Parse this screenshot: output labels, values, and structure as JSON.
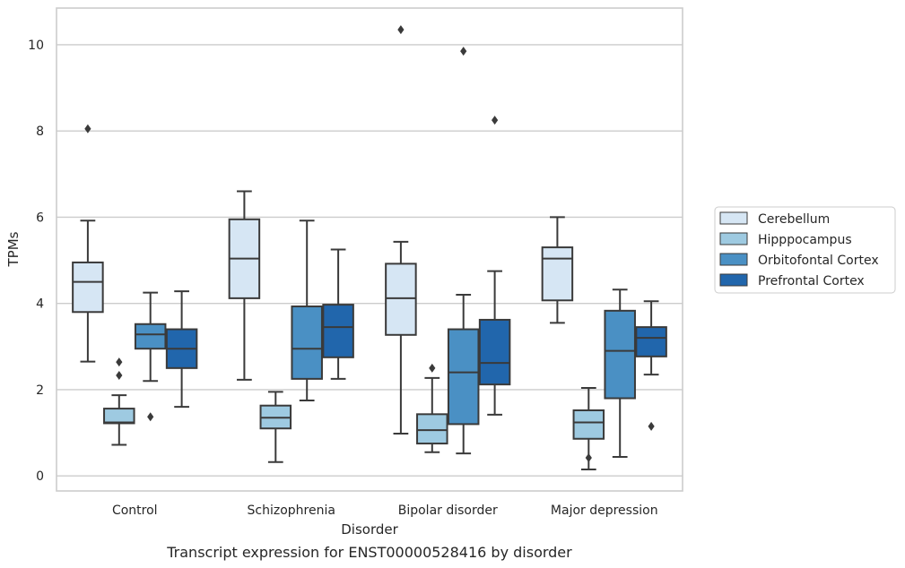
{
  "chart_data": {
    "type": "box",
    "caption": "Transcript expression for ENST00000528416 by disorder",
    "xlabel": "Disorder",
    "ylabel": "TPMs",
    "ylim": [
      -0.35,
      10.85
    ],
    "yticks": [
      0,
      2,
      4,
      6,
      8,
      10
    ],
    "grid": "horizontal",
    "legend_position": "right",
    "categories": [
      "Control",
      "Schizophrenia",
      "Bipolar disorder",
      "Major depression"
    ],
    "series": [
      {
        "name": "Cerebellum",
        "color": "#d6e6f4",
        "boxes": [
          {
            "whislo": 2.65,
            "q1": 3.8,
            "med": 4.5,
            "q3": 4.95,
            "whishi": 5.92,
            "fliers": [
              8.05
            ]
          },
          {
            "whislo": 2.23,
            "q1": 4.12,
            "med": 5.04,
            "q3": 5.95,
            "whishi": 6.6,
            "fliers": []
          },
          {
            "whislo": 0.98,
            "q1": 3.27,
            "med": 4.12,
            "q3": 4.92,
            "whishi": 5.43,
            "fliers": [
              10.35
            ]
          },
          {
            "whislo": 3.55,
            "q1": 4.07,
            "med": 5.04,
            "q3": 5.3,
            "whishi": 6.0,
            "fliers": []
          }
        ]
      },
      {
        "name": "Hipppocampus",
        "color": "#9ecae1",
        "boxes": [
          {
            "whislo": 0.72,
            "q1": 1.22,
            "med": 1.24,
            "q3": 1.56,
            "whishi": 1.87,
            "fliers": [
              2.64,
              2.33
            ]
          },
          {
            "whislo": 0.32,
            "q1": 1.1,
            "med": 1.35,
            "q3": 1.63,
            "whishi": 1.95,
            "fliers": []
          },
          {
            "whislo": 0.55,
            "q1": 0.75,
            "med": 1.06,
            "q3": 1.43,
            "whishi": 2.27,
            "fliers": [
              2.5
            ]
          },
          {
            "whislo": 0.15,
            "q1": 0.86,
            "med": 1.24,
            "q3": 1.52,
            "whishi": 2.04,
            "fliers": [
              0.42
            ]
          }
        ]
      },
      {
        "name": "Orbitofontal Cortex",
        "color": "#4a90c4",
        "boxes": [
          {
            "whislo": 2.2,
            "q1": 2.95,
            "med": 3.28,
            "q3": 3.52,
            "whishi": 4.25,
            "fliers": [
              1.37
            ]
          },
          {
            "whislo": 1.75,
            "q1": 2.25,
            "med": 2.95,
            "q3": 3.93,
            "whishi": 5.92,
            "fliers": []
          },
          {
            "whislo": 0.52,
            "q1": 1.2,
            "med": 2.4,
            "q3": 3.4,
            "whishi": 4.2,
            "fliers": [
              9.85
            ]
          },
          {
            "whislo": 0.44,
            "q1": 1.8,
            "med": 2.9,
            "q3": 3.83,
            "whishi": 4.32,
            "fliers": []
          }
        ]
      },
      {
        "name": "Prefrontal Cortex",
        "color": "#2166ac",
        "boxes": [
          {
            "whislo": 1.6,
            "q1": 2.5,
            "med": 2.95,
            "q3": 3.4,
            "whishi": 4.28,
            "fliers": []
          },
          {
            "whislo": 2.25,
            "q1": 2.75,
            "med": 3.45,
            "q3": 3.97,
            "whishi": 5.25,
            "fliers": []
          },
          {
            "whislo": 1.42,
            "q1": 2.12,
            "med": 2.62,
            "q3": 3.62,
            "whishi": 4.75,
            "fliers": [
              8.25
            ]
          },
          {
            "whislo": 2.35,
            "q1": 2.77,
            "med": 3.2,
            "q3": 3.45,
            "whishi": 4.05,
            "fliers": [
              1.15
            ]
          }
        ]
      }
    ]
  }
}
